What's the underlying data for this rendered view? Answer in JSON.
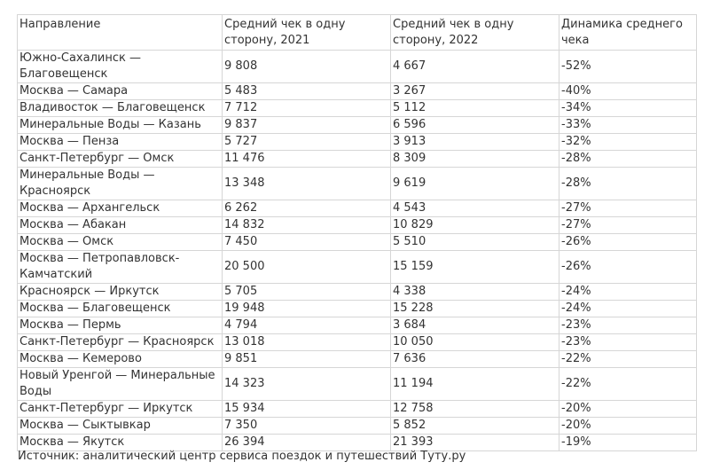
{
  "table": {
    "headers": [
      "Направление",
      "Средний чек в одну сторону, 2021",
      "Средний чек в одну сторону, 2022",
      "Динамика среднего чека"
    ],
    "rows": [
      [
        "Южно-Сахалинск — Благовещенск",
        "9 808",
        "4 667",
        "-52%"
      ],
      [
        "Москва — Самара",
        "5 483",
        "3 267",
        "-40%"
      ],
      [
        "Владивосток — Благовещенск",
        "7 712",
        "5 112",
        "-34%"
      ],
      [
        "Минеральные Воды — Казань",
        "9 837",
        "6 596",
        "-33%"
      ],
      [
        "Москва — Пенза",
        "5 727",
        "3 913",
        "-32%"
      ],
      [
        "Санкт-Петербург — Омск",
        "11 476",
        "8 309",
        "-28%"
      ],
      [
        "Минеральные Воды — Красноярск",
        "13 348",
        "9 619",
        "-28%"
      ],
      [
        "Москва — Архангельск",
        "6 262",
        "4 543",
        "-27%"
      ],
      [
        "Москва — Абакан",
        "14 832",
        "10 829",
        "-27%"
      ],
      [
        "Москва — Омск",
        "7 450",
        "5 510",
        "-26%"
      ],
      [
        "Москва — Петропавловск-Камчатский",
        "20 500",
        "15 159",
        "-26%"
      ],
      [
        "Красноярск — Иркутск",
        "5 705",
        "4 338",
        "-24%"
      ],
      [
        "Москва — Благовещенск",
        "19 948",
        "15 228",
        "-24%"
      ],
      [
        "Москва — Пермь",
        "4 794",
        "3 684",
        "-23%"
      ],
      [
        "Санкт-Петербург — Красноярск",
        "13 018",
        "10 050",
        "-23%"
      ],
      [
        "Москва — Кемерово",
        "9 851",
        "7 636",
        "-22%"
      ],
      [
        "Новый Уренгой — Минеральные Воды",
        "14 323",
        "11 194",
        "-22%"
      ],
      [
        "Санкт-Петербург — Иркутск",
        "15 934",
        "12 758",
        "-20%"
      ],
      [
        "Москва — Сыктывкар",
        "7 350",
        "5 852",
        "-20%"
      ],
      [
        "Москва — Якутск",
        "26 394",
        "21 393",
        "-19%"
      ]
    ]
  },
  "source": "Источник: аналитический центр сервиса поездок и путешествий Туту.ру",
  "colors": {
    "border": "#d6d6d6",
    "text": "#333333",
    "background": "#ffffff"
  }
}
